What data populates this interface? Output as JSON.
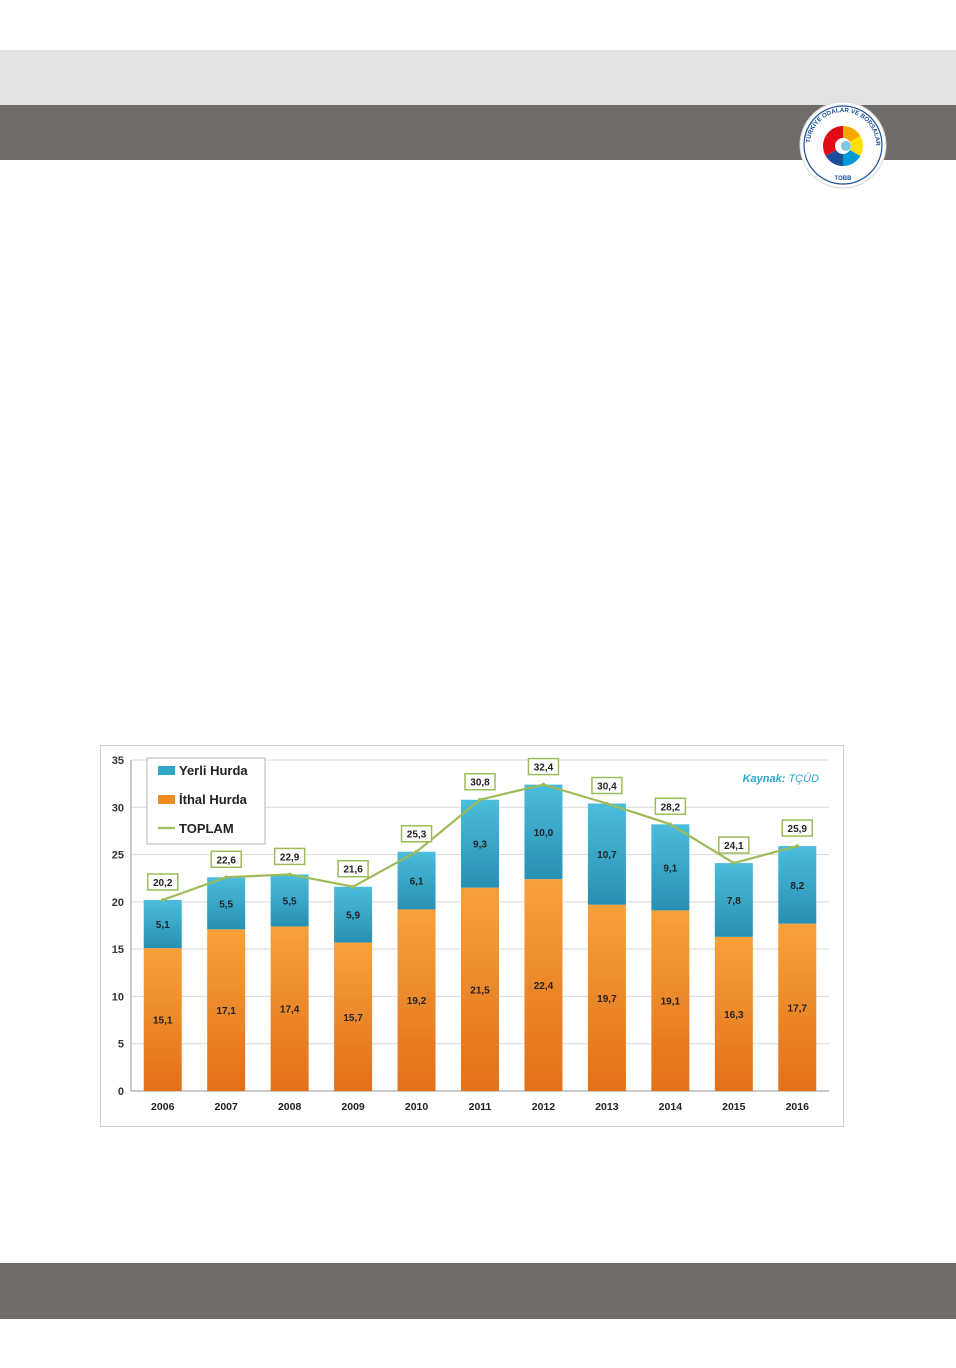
{
  "header": {
    "logo": {
      "arc_text": "TÜRKİYE ODALAR VE BORSALAR BİRLİĞİ",
      "acronym": "TOBB",
      "colors": [
        "#e30a17",
        "#f6a800",
        "#ffe000",
        "#0099d8",
        "#1a4f9c"
      ]
    }
  },
  "chart_data": {
    "type": "bar",
    "stacked": true,
    "categories": [
      "2006",
      "2007",
      "2008",
      "2009",
      "2010",
      "2011",
      "2012",
      "2013",
      "2014",
      "2015",
      "2016"
    ],
    "series": [
      {
        "name": "İthal Hurda",
        "color": "#f08a24",
        "labels": [
          "15,1",
          "17,1",
          "17,4",
          "15,7",
          "19,2",
          "21,5",
          "22,4",
          "19,7",
          "19,1",
          "16,3",
          "17,7"
        ],
        "values": [
          15.1,
          17.1,
          17.4,
          15.7,
          19.2,
          21.5,
          22.4,
          19.7,
          19.1,
          16.3,
          17.7
        ]
      },
      {
        "name": "Yerli Hurda",
        "color": "#2ea7c9",
        "labels": [
          "5,1",
          "5,5",
          "5,5",
          "5,9",
          "6,1",
          "9,3",
          "10,0",
          "10,7",
          "9,1",
          "7,8",
          "8,2"
        ],
        "values": [
          5.1,
          5.5,
          5.5,
          5.9,
          6.1,
          9.3,
          10.0,
          10.7,
          9.1,
          7.8,
          8.2
        ]
      }
    ],
    "line": {
      "name": "TOPLAM",
      "color": "#9dbb59",
      "labels": [
        "20,2",
        "22,6",
        "22,9",
        "21,6",
        "25,3",
        "30,8",
        "32,4",
        "30,4",
        "28,2",
        "24,1",
        "25,9"
      ],
      "values": [
        20.2,
        22.6,
        22.9,
        21.6,
        25.3,
        30.8,
        32.4,
        30.4,
        28.2,
        24.1,
        25.9
      ]
    },
    "legend": [
      "Yerli Hurda",
      "İthal Hurda",
      "TOPLAM"
    ],
    "legend_position": "top-left",
    "source_label": "Kaynak:",
    "source_value": "TÇÜD",
    "yticks": [
      "0",
      "5",
      "10",
      "15",
      "20",
      "25",
      "30",
      "35"
    ],
    "ylim": [
      0,
      35
    ],
    "grid": true
  }
}
